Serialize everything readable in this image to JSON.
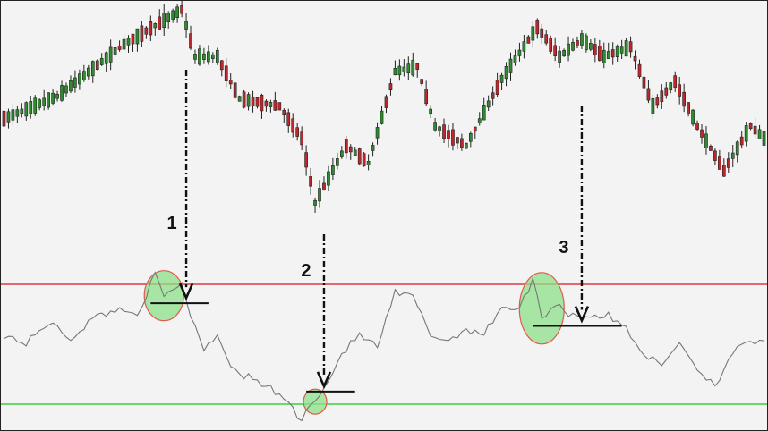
{
  "chart_data": {
    "type": "candlestick_with_oscillator",
    "colors": {
      "bullish": "#2e8b2e",
      "bearish": "#c0272d",
      "oscillator_line": "#777777",
      "overbought_line": "#e0393e",
      "oversold_line": "#3ccf3c",
      "highlight_fill": "#8de08a",
      "highlight_stroke": "#e05a4a",
      "arrow": "#111111"
    },
    "grid": false,
    "legend": "none",
    "price_pivots": [
      {
        "i": 0,
        "v": 0.55
      },
      {
        "i": 12,
        "v": 0.64
      },
      {
        "i": 27,
        "v": 0.85
      },
      {
        "i": 40,
        "v": 0.99
      },
      {
        "i": 43,
        "v": 0.8
      },
      {
        "i": 48,
        "v": 0.8
      },
      {
        "i": 53,
        "v": 0.63
      },
      {
        "i": 62,
        "v": 0.6
      },
      {
        "i": 67,
        "v": 0.47
      },
      {
        "i": 70,
        "v": 0.21
      },
      {
        "i": 77,
        "v": 0.44
      },
      {
        "i": 82,
        "v": 0.37
      },
      {
        "i": 88,
        "v": 0.74
      },
      {
        "i": 93,
        "v": 0.76
      },
      {
        "i": 97,
        "v": 0.52
      },
      {
        "i": 104,
        "v": 0.44
      },
      {
        "i": 112,
        "v": 0.71
      },
      {
        "i": 120,
        "v": 0.92
      },
      {
        "i": 125,
        "v": 0.8
      },
      {
        "i": 130,
        "v": 0.87
      },
      {
        "i": 135,
        "v": 0.8
      },
      {
        "i": 141,
        "v": 0.84
      },
      {
        "i": 146,
        "v": 0.6
      },
      {
        "i": 151,
        "v": 0.7
      },
      {
        "i": 156,
        "v": 0.52
      },
      {
        "i": 162,
        "v": 0.34
      },
      {
        "i": 168,
        "v": 0.52
      },
      {
        "i": 171,
        "v": 0.47
      }
    ],
    "candle_count": 172,
    "oscillator": [
      {
        "i": 0,
        "v": 0.55
      },
      {
        "i": 5,
        "v": 0.48
      },
      {
        "i": 10,
        "v": 0.65
      },
      {
        "i": 15,
        "v": 0.52
      },
      {
        "i": 20,
        "v": 0.68
      },
      {
        "i": 25,
        "v": 0.75
      },
      {
        "i": 30,
        "v": 0.72
      },
      {
        "i": 34,
        "v": 1.02
      },
      {
        "i": 36,
        "v": 0.85
      },
      {
        "i": 38,
        "v": 0.9
      },
      {
        "i": 40,
        "v": 0.97
      },
      {
        "i": 42,
        "v": 0.7
      },
      {
        "i": 45,
        "v": 0.45
      },
      {
        "i": 48,
        "v": 0.55
      },
      {
        "i": 52,
        "v": 0.25
      },
      {
        "i": 56,
        "v": 0.2
      },
      {
        "i": 60,
        "v": 0.12
      },
      {
        "i": 64,
        "v": 0.02
      },
      {
        "i": 67,
        "v": -0.15
      },
      {
        "i": 69,
        "v": 0.02
      },
      {
        "i": 72,
        "v": 0.12
      },
      {
        "i": 76,
        "v": 0.4
      },
      {
        "i": 80,
        "v": 0.55
      },
      {
        "i": 84,
        "v": 0.45
      },
      {
        "i": 88,
        "v": 0.88
      },
      {
        "i": 92,
        "v": 0.85
      },
      {
        "i": 96,
        "v": 0.55
      },
      {
        "i": 100,
        "v": 0.5
      },
      {
        "i": 104,
        "v": 0.6
      },
      {
        "i": 108,
        "v": 0.55
      },
      {
        "i": 112,
        "v": 0.78
      },
      {
        "i": 116,
        "v": 0.75
      },
      {
        "i": 119,
        "v": 1.0
      },
      {
        "i": 121,
        "v": 0.68
      },
      {
        "i": 124,
        "v": 0.8
      },
      {
        "i": 127,
        "v": 0.72
      },
      {
        "i": 131,
        "v": 0.7
      },
      {
        "i": 136,
        "v": 0.7
      },
      {
        "i": 140,
        "v": 0.6
      },
      {
        "i": 144,
        "v": 0.4
      },
      {
        "i": 148,
        "v": 0.3
      },
      {
        "i": 152,
        "v": 0.5
      },
      {
        "i": 156,
        "v": 0.28
      },
      {
        "i": 160,
        "v": 0.15
      },
      {
        "i": 164,
        "v": 0.42
      },
      {
        "i": 168,
        "v": 0.48
      },
      {
        "i": 171,
        "v": 0.52
      }
    ],
    "overbought_level": 0.95,
    "oversold_level": 0.0,
    "annotations": [
      {
        "label": "1",
        "from_index": 41,
        "to_index": 41,
        "osc_value": 0.8
      },
      {
        "label": "2",
        "from_index": 72,
        "to_index": 72,
        "osc_value": 0.1
      },
      {
        "label": "3",
        "from_index": 130,
        "to_index": 130,
        "osc_value": 0.62
      }
    ],
    "highlights": [
      {
        "center_index": 36,
        "osc_value": 0.86
      },
      {
        "center_index": 70,
        "osc_value": 0.02
      },
      {
        "center_index": 121,
        "osc_value": 0.76
      }
    ],
    "support_segments": [
      {
        "from_index": 33,
        "to_index": 46,
        "osc_value": 0.8
      },
      {
        "from_index": 68,
        "to_index": 79,
        "osc_value": 0.1
      },
      {
        "from_index": 119,
        "to_index": 139,
        "osc_value": 0.62
      }
    ]
  }
}
